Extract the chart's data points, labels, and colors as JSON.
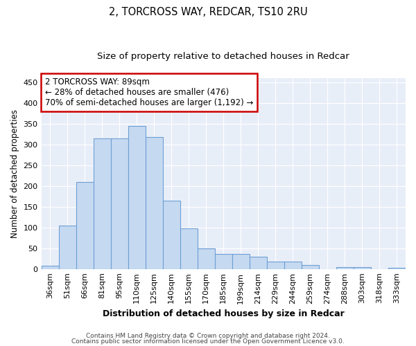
{
  "title": "2, TORCROSS WAY, REDCAR, TS10 2RU",
  "subtitle": "Size of property relative to detached houses in Redcar",
  "xlabel": "Distribution of detached houses by size in Redcar",
  "ylabel": "Number of detached properties",
  "categories": [
    "36sqm",
    "51sqm",
    "66sqm",
    "81sqm",
    "95sqm",
    "110sqm",
    "125sqm",
    "140sqm",
    "155sqm",
    "170sqm",
    "185sqm",
    "199sqm",
    "214sqm",
    "229sqm",
    "244sqm",
    "259sqm",
    "274sqm",
    "288sqm",
    "303sqm",
    "318sqm",
    "333sqm"
  ],
  "values": [
    7,
    105,
    210,
    315,
    315,
    345,
    318,
    165,
    98,
    50,
    36,
    36,
    30,
    18,
    18,
    10,
    0,
    5,
    5,
    0,
    3
  ],
  "bar_color": "#c5d9f1",
  "bar_edge_color": "#6ca0d4",
  "annotation_text": "2 TORCROSS WAY: 89sqm\n← 28% of detached houses are smaller (476)\n70% of semi-detached houses are larger (1,192) →",
  "annotation_box_facecolor": "#ffffff",
  "annotation_box_edgecolor": "#cc0000",
  "ylim": [
    0,
    460
  ],
  "yticks": [
    0,
    50,
    100,
    150,
    200,
    250,
    300,
    350,
    400,
    450
  ],
  "footer1": "Contains HM Land Registry data © Crown copyright and database right 2024.",
  "footer2": "Contains public sector information licensed under the Open Government Licence v3.0.",
  "background_color": "#e8eef8",
  "grid_color": "#ffffff",
  "title_fontsize": 10.5,
  "subtitle_fontsize": 9.5,
  "xlabel_fontsize": 9,
  "ylabel_fontsize": 8.5,
  "tick_fontsize": 8,
  "annotation_fontsize": 8.5,
  "footer_fontsize": 6.5
}
